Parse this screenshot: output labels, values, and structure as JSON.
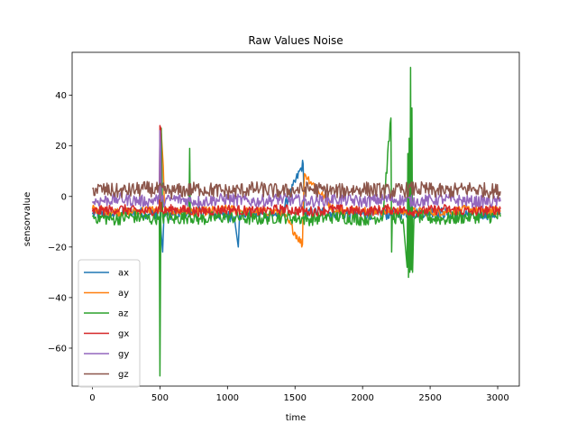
{
  "chart_data": {
    "type": "line",
    "title": "Raw Values Noise",
    "xlabel": "time",
    "ylabel": "sensorvalue",
    "xlim": [
      -150,
      3160
    ],
    "ylim": [
      -75,
      57
    ],
    "xticks": [
      0,
      500,
      1000,
      1500,
      2000,
      2500,
      3000
    ],
    "yticks": [
      -60,
      -40,
      -20,
      0,
      20,
      40
    ],
    "grid": false,
    "legend_position": "lower-left",
    "series": [
      {
        "name": "ax",
        "color": "#1f77b4",
        "x": [
          0,
          150,
          300,
          450,
          500,
          510,
          520,
          530,
          600,
          750,
          900,
          1050,
          1080,
          1090,
          1200,
          1400,
          1560,
          1570,
          1700,
          1900,
          2100,
          2300,
          2500,
          2700,
          2900,
          3020
        ],
        "values": [
          -7,
          -7,
          -6,
          -7,
          -6,
          -15,
          -22,
          -7,
          -7,
          -6,
          -7,
          -8,
          -20,
          -7,
          -7,
          -7,
          13,
          -7,
          -6,
          -7,
          -7,
          -7,
          -6,
          -7,
          -7,
          -7
        ]
      },
      {
        "name": "ay",
        "color": "#ff7f0e",
        "x": [
          0,
          150,
          300,
          450,
          500,
          510,
          525,
          535,
          600,
          800,
          1000,
          1200,
          1400,
          1555,
          1560,
          1570,
          1800,
          2000,
          2200,
          2400,
          2600,
          2800,
          3020
        ],
        "values": [
          -5,
          -6,
          -6,
          -5,
          -6,
          25,
          12,
          -6,
          -6,
          -6,
          -5,
          -6,
          -6,
          -19,
          -6,
          9,
          -6,
          -5,
          -6,
          -6,
          -6,
          -5,
          -6
        ]
      },
      {
        "name": "az",
        "color": "#2ca02c",
        "x": [
          0,
          150,
          300,
          450,
          495,
          500,
          510,
          520,
          600,
          715,
          720,
          725,
          800,
          1000,
          1200,
          1400,
          1600,
          1800,
          2000,
          2150,
          2210,
          2215,
          2220,
          2300,
          2330,
          2335,
          2340,
          2345,
          2350,
          2355,
          2360,
          2365,
          2370,
          2380,
          2400,
          2600,
          2800,
          3020
        ],
        "values": [
          -8,
          -9,
          -8,
          -9,
          -8,
          -71,
          27,
          -8,
          -9,
          -8,
          19,
          -8,
          -9,
          -8,
          -9,
          -8,
          -9,
          -8,
          -9,
          -8,
          31,
          -22,
          -8,
          -9,
          -28,
          17,
          -32,
          23,
          -30,
          51,
          -29,
          35,
          -30,
          -9,
          -8,
          -9,
          -8,
          -8
        ]
      },
      {
        "name": "gx",
        "color": "#d62728",
        "x": [
          0,
          200,
          400,
          495,
          500,
          505,
          510,
          600,
          800,
          1000,
          1200,
          1400,
          1600,
          1800,
          2000,
          2200,
          2400,
          2600,
          2800,
          3020
        ],
        "values": [
          -6,
          -5,
          -6,
          -5,
          28,
          27,
          -6,
          -5,
          -6,
          -5,
          -6,
          -5,
          -6,
          -5,
          -6,
          -5,
          -6,
          -5,
          -6,
          -5
        ]
      },
      {
        "name": "gy",
        "color": "#9467bd",
        "x": [
          0,
          200,
          400,
          495,
          500,
          505,
          510,
          600,
          800,
          1000,
          1200,
          1400,
          1600,
          1800,
          2000,
          2200,
          2400,
          2600,
          2800,
          3020
        ],
        "values": [
          -2,
          -1,
          -2,
          -1,
          26,
          20,
          -2,
          -1,
          -2,
          -1,
          -2,
          -1,
          -2,
          -1,
          -2,
          -1,
          -2,
          -1,
          -2,
          -2
        ]
      },
      {
        "name": "gz",
        "color": "#8c564b",
        "x": [
          0,
          200,
          400,
          600,
          800,
          1000,
          1200,
          1400,
          1600,
          1800,
          2000,
          2200,
          2400,
          2600,
          2800,
          3020
        ],
        "values": [
          3,
          2,
          3,
          2,
          3,
          2,
          3,
          2,
          3,
          2,
          3,
          2,
          3,
          2,
          3,
          2
        ]
      }
    ]
  }
}
